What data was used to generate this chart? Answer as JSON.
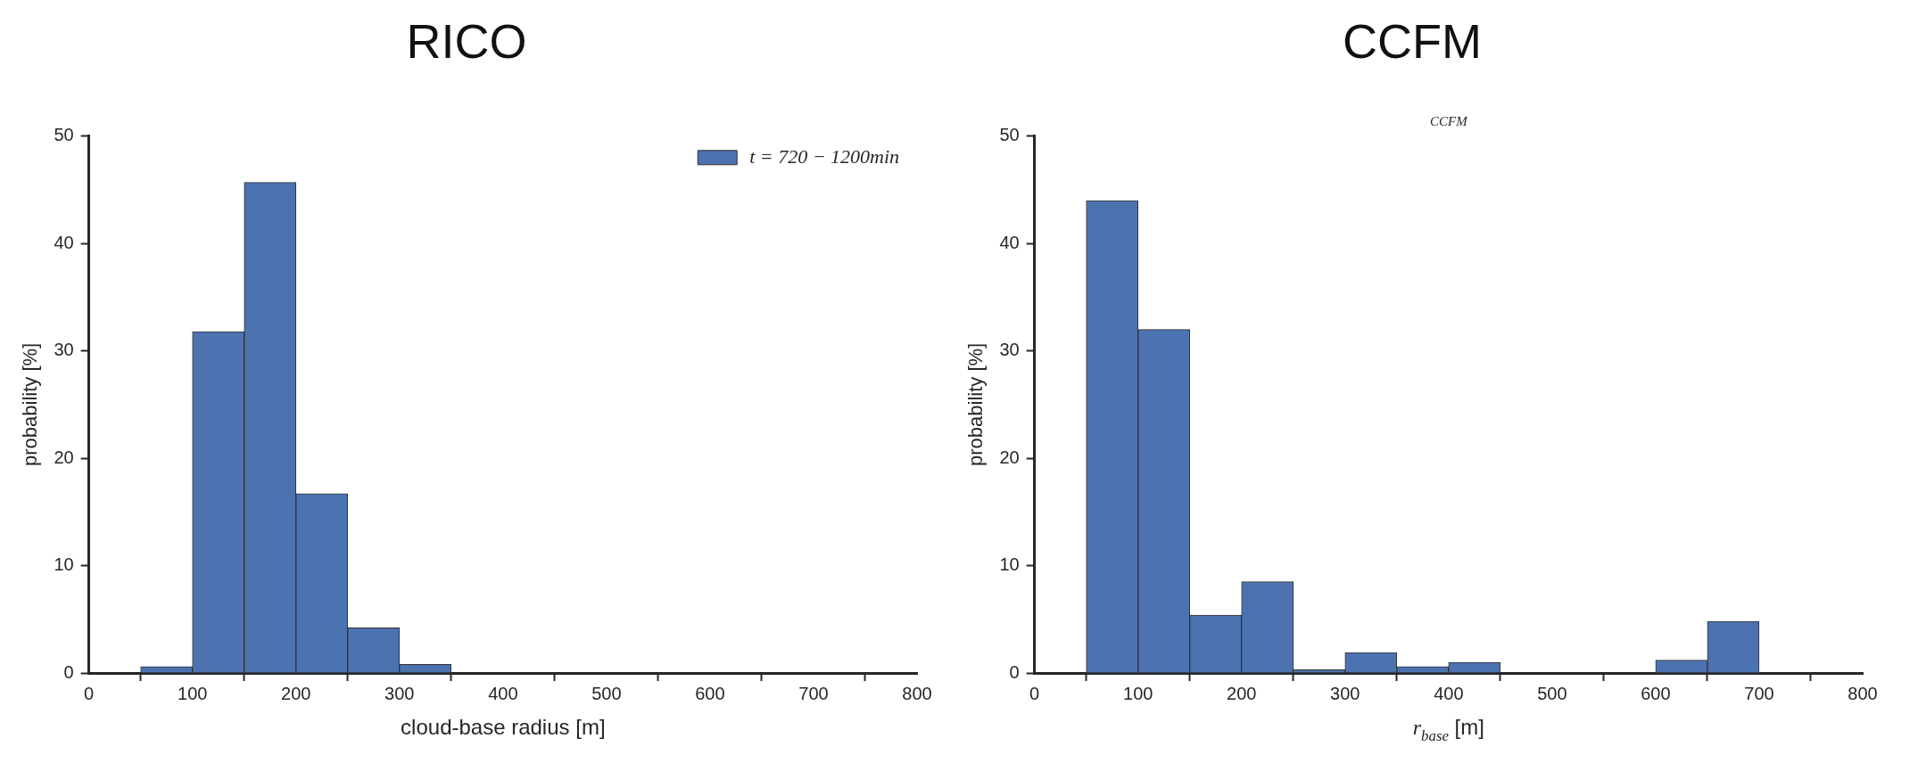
{
  "chart_data": [
    {
      "type": "histogram",
      "title": "RICO",
      "xlabel": "cloud-base radius [m]",
      "ylabel": "probability [%]",
      "bins": [
        0,
        50,
        100,
        150,
        200,
        250,
        300,
        350,
        400,
        450,
        500,
        550,
        600,
        650,
        700,
        750,
        800
      ],
      "series": [
        {
          "name": "t = 720 − 1200min",
          "color": "#4c72b0",
          "values": [
            0,
            0.6,
            31.8,
            45.7,
            16.7,
            4.2,
            0.8,
            0,
            0,
            0,
            0,
            0,
            0,
            0,
            0,
            0
          ]
        }
      ],
      "xlim": [
        0,
        800
      ],
      "xticks": [
        0,
        100,
        200,
        300,
        400,
        500,
        600,
        700,
        800
      ],
      "ylim": [
        0,
        50
      ],
      "yticks": [
        0,
        10,
        20,
        30,
        40,
        50
      ],
      "grid": false,
      "legend": "top right"
    },
    {
      "type": "histogram",
      "title": "CCFM",
      "xlabel": "r$_{base}$ [m]",
      "ylabel": "probability [%]",
      "annotations": [
        "CCFM"
      ],
      "bins": [
        0,
        50,
        100,
        150,
        200,
        250,
        300,
        350,
        400,
        450,
        500,
        550,
        600,
        650,
        700,
        750,
        800
      ],
      "series": [
        {
          "color": "#4c72b0",
          "values": [
            0,
            44.0,
            32.0,
            5.4,
            8.5,
            0.3,
            1.9,
            0.6,
            1.0,
            0,
            0,
            0,
            1.2,
            4.8,
            0,
            0
          ]
        }
      ],
      "xlim": [
        0,
        800
      ],
      "xticks": [
        0,
        100,
        200,
        300,
        400,
        500,
        600,
        700,
        800
      ],
      "ylim": [
        0,
        50
      ],
      "yticks": [
        0,
        10,
        20,
        30,
        40,
        50
      ],
      "grid": false
    }
  ]
}
